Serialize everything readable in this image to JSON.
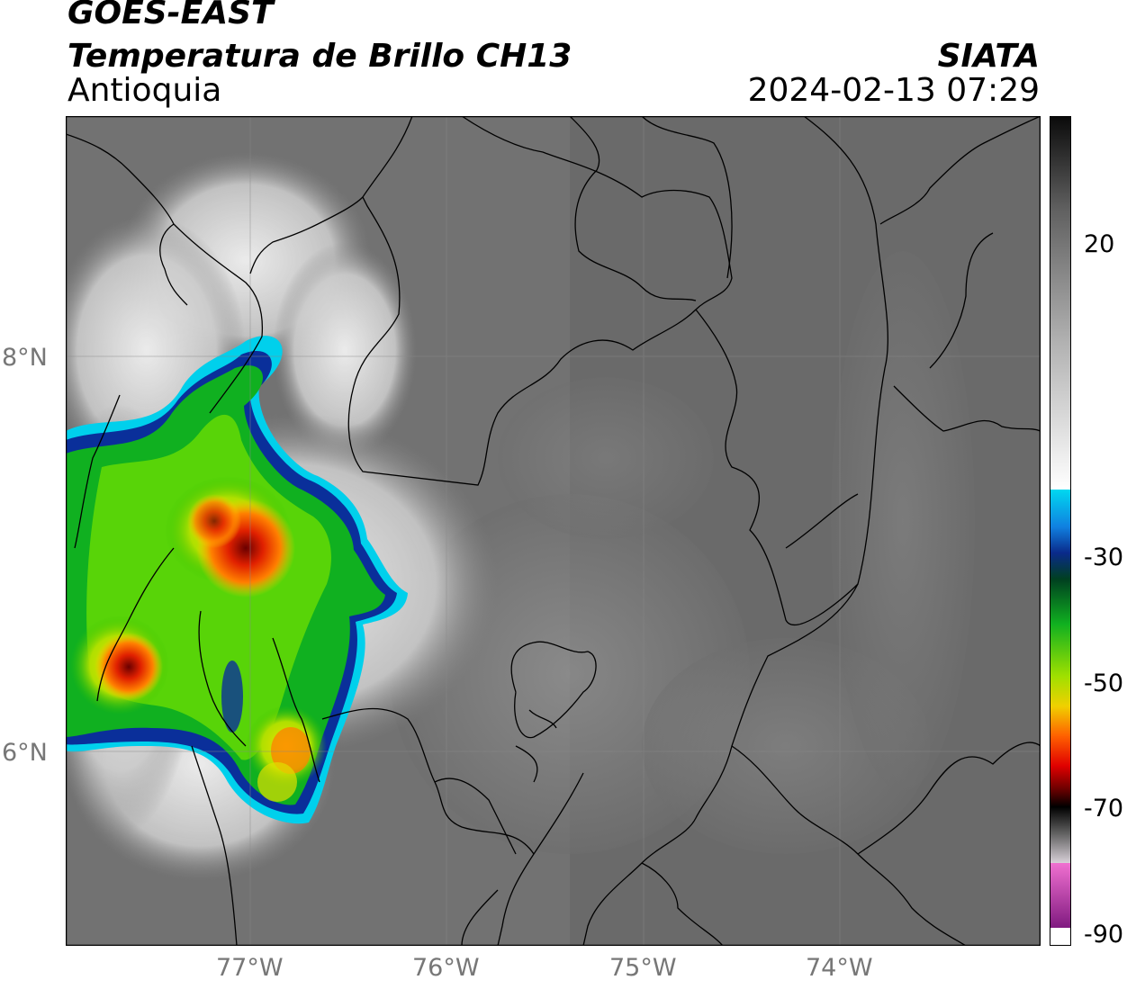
{
  "header": {
    "title_line1": "GOES-EAST",
    "title_line2": "Temperatura de Brillo CH13",
    "region": "Antioquia",
    "agency": "SIATA",
    "datetime": "2024-02-13 07:29"
  },
  "map": {
    "lat_labels": [
      "8°N",
      "6°N"
    ],
    "lon_labels": [
      "77°W",
      "76°W",
      "75°W",
      "74°W"
    ],
    "colors": {
      "land_gray": "#6b6b6b",
      "cold_white": "#e8e8e8",
      "border": "#000000",
      "grid": "#8a8a8a"
    }
  },
  "colorbar": {
    "tick_labels": [
      "20",
      "-30",
      "-50",
      "-70",
      "-90"
    ],
    "colors": {
      "dark_top": "#111111",
      "cyan": "#00d8f0",
      "blue": "#0a2a8a",
      "green": "#00b000",
      "yellow": "#f0f000",
      "red": "#e00000",
      "black": "#000000",
      "pink": "#e060c0",
      "purple": "#902090"
    }
  }
}
